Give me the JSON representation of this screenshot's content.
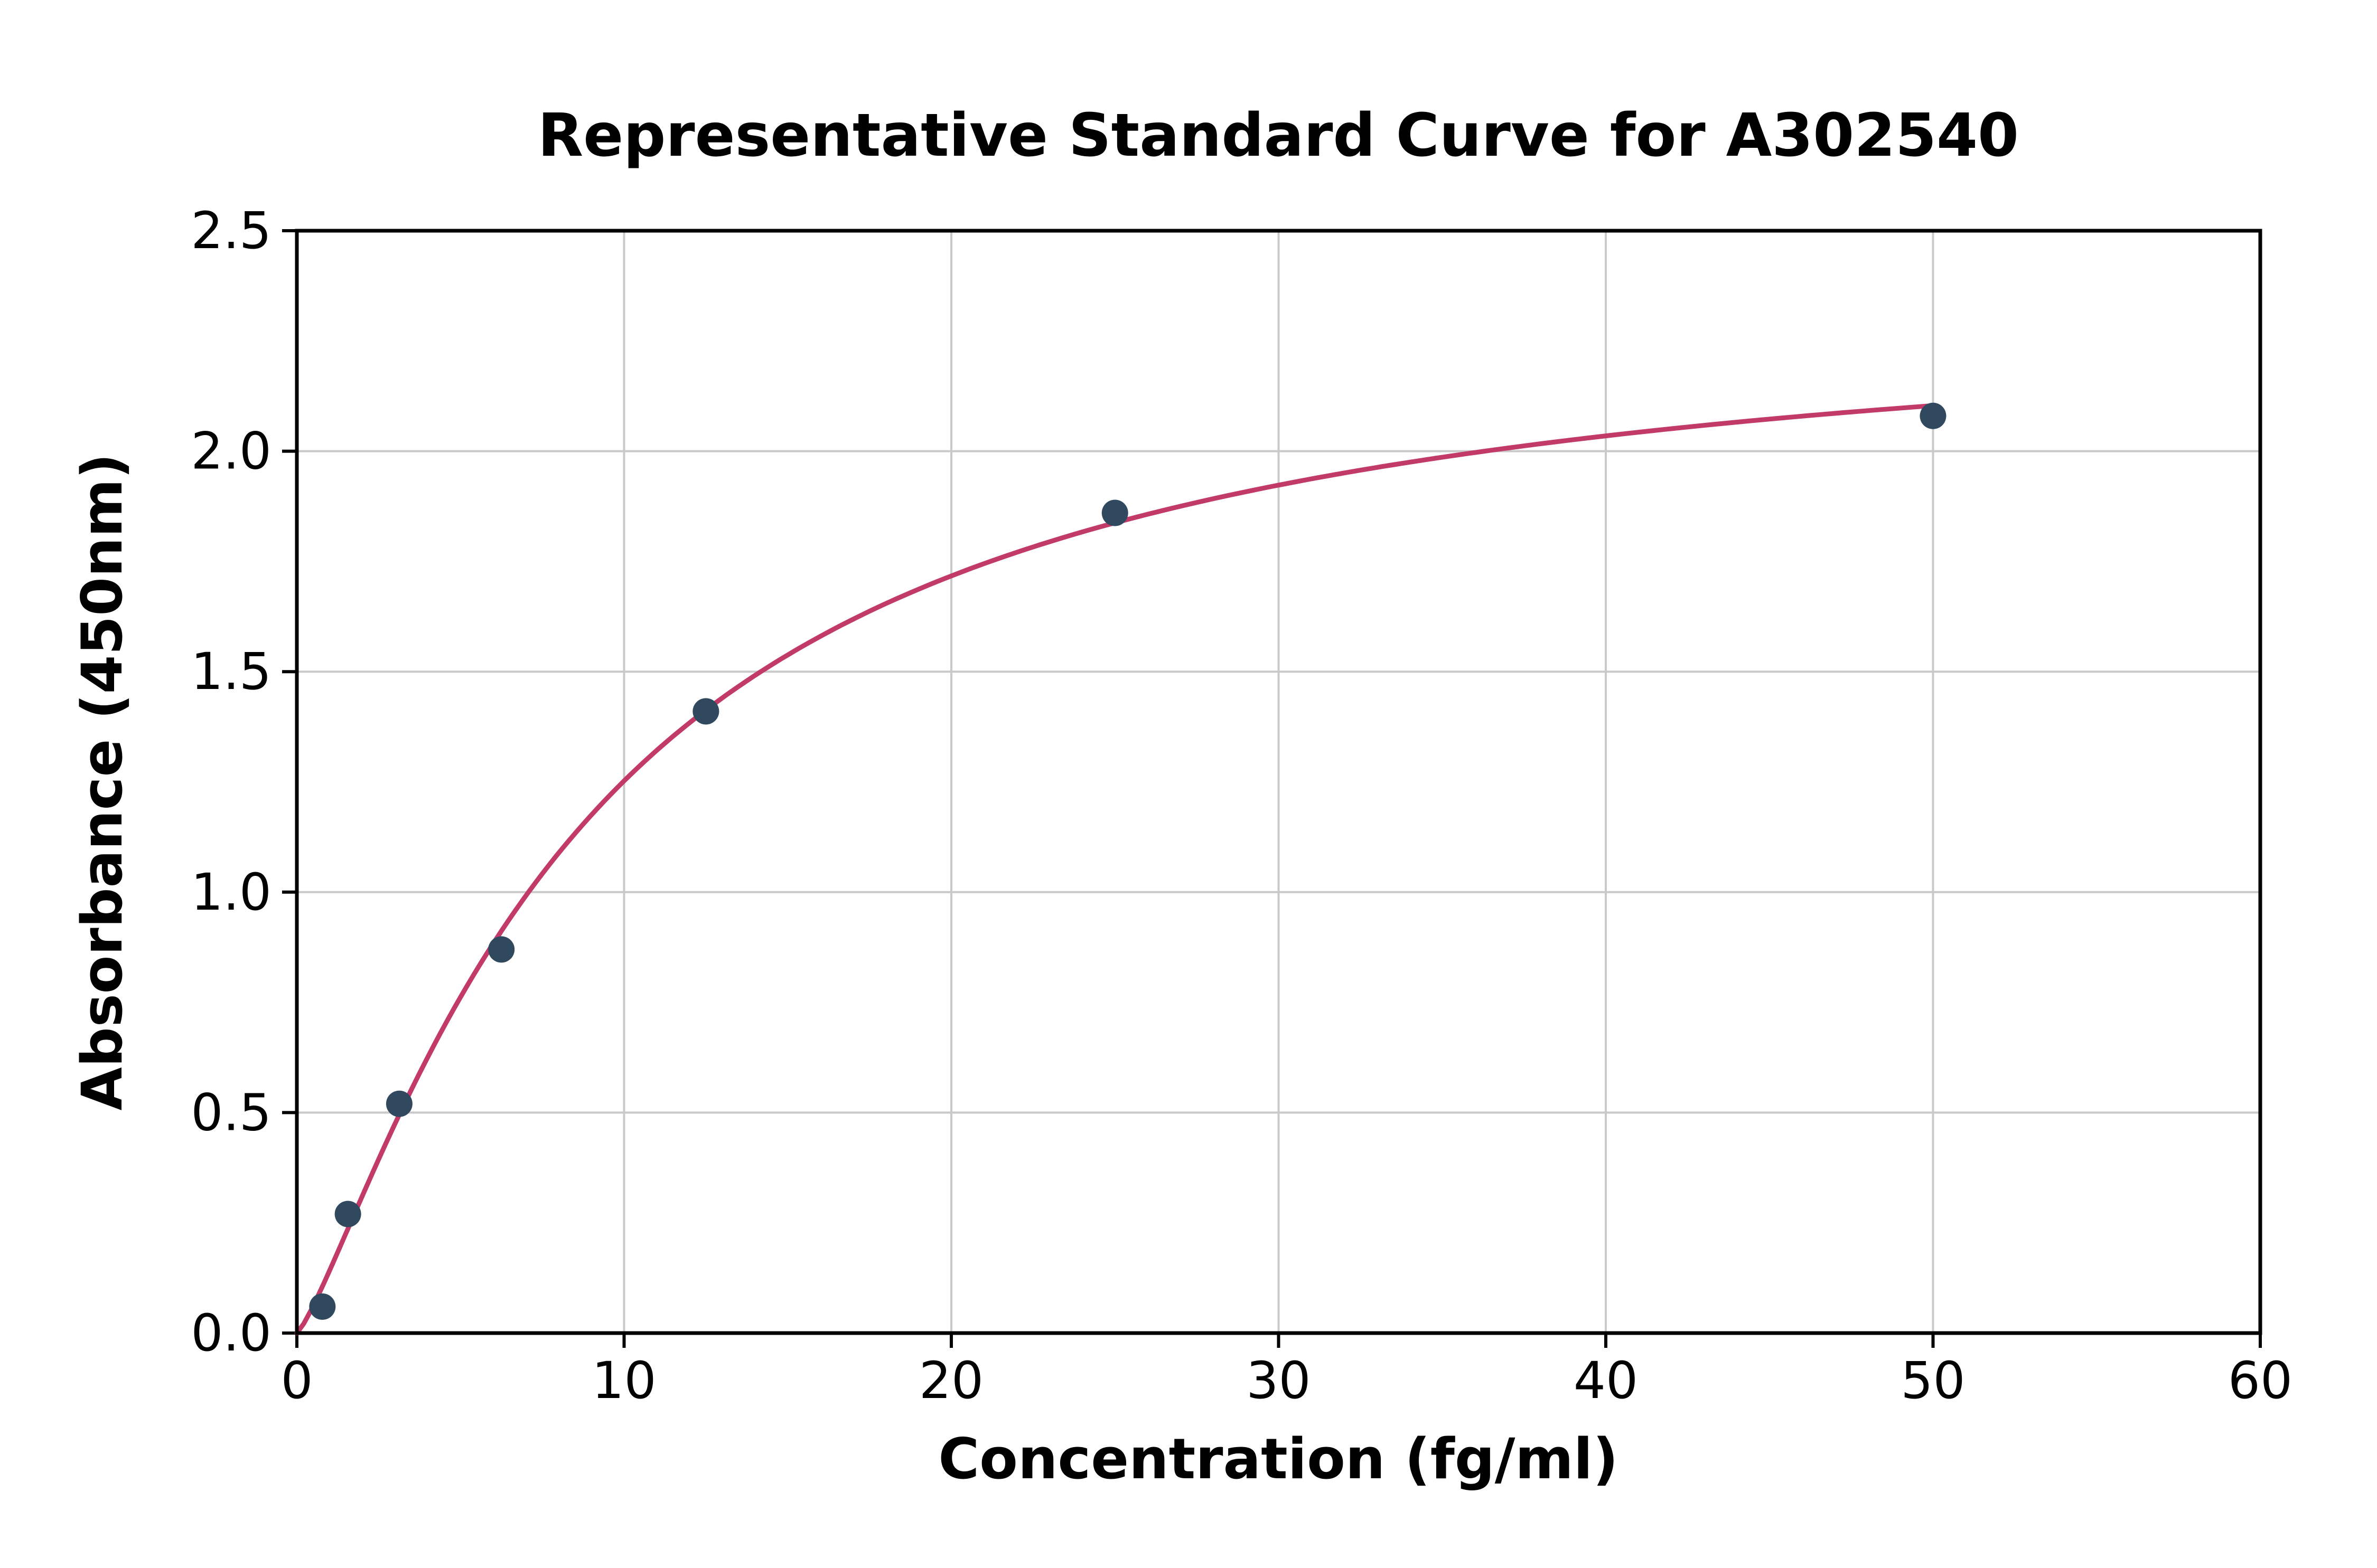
{
  "chart_data": {
    "type": "scatter",
    "title": "Representative Standard Curve for A302540",
    "xlabel": "Concentration (fg/ml)",
    "ylabel": "Absorbance (450nm)",
    "xlim": [
      0,
      60
    ],
    "ylim": [
      0,
      2.5
    ],
    "xticks": [
      0,
      10,
      20,
      30,
      40,
      50,
      60
    ],
    "yticks": [
      0.0,
      0.5,
      1.0,
      1.5,
      2.0,
      2.5
    ],
    "grid": true,
    "legend": "none",
    "points": [
      {
        "x": 0.78,
        "y": 0.06
      },
      {
        "x": 1.56,
        "y": 0.27
      },
      {
        "x": 3.13,
        "y": 0.52
      },
      {
        "x": 6.25,
        "y": 0.87
      },
      {
        "x": 12.5,
        "y": 1.41
      },
      {
        "x": 25.0,
        "y": 1.86
      },
      {
        "x": 50.0,
        "y": 2.08
      }
    ],
    "fit_curve": {
      "model": "4PL",
      "a": 0.0,
      "b": 1.25,
      "c": 9.0,
      "d": 2.35,
      "x_range": [
        0,
        50
      ]
    },
    "colors": {
      "points": "#31495f",
      "curve": "#c23b68",
      "grid": "#c9c9c9",
      "axes": "#000000",
      "background": "#ffffff"
    }
  }
}
